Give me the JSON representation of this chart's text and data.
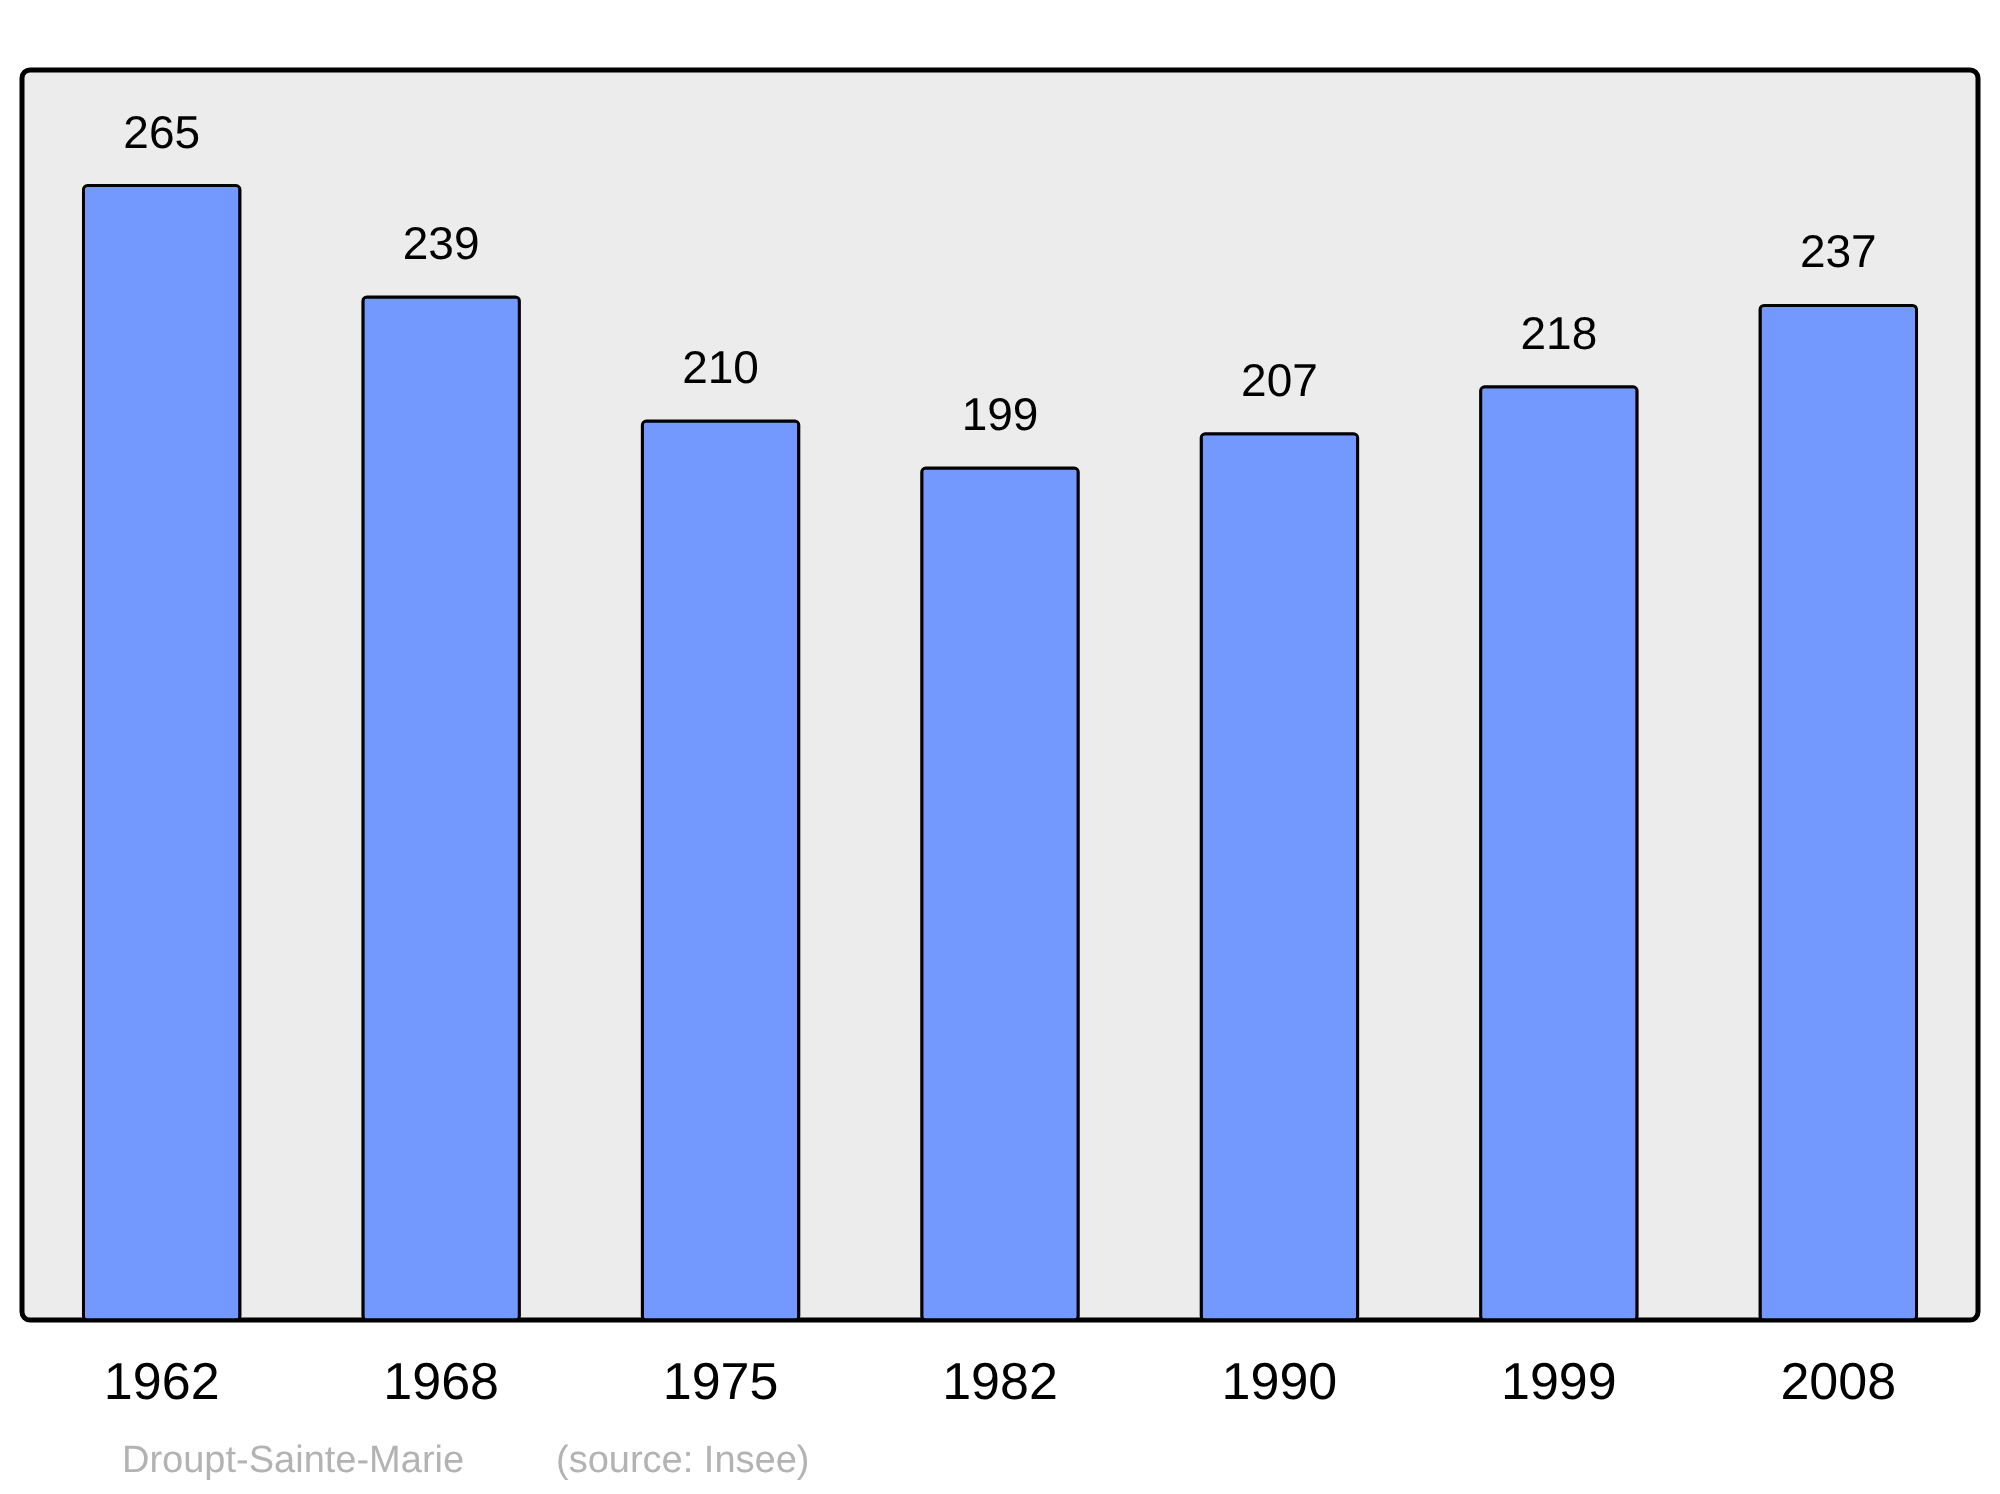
{
  "chart_data": {
    "type": "bar",
    "categories": [
      "1962",
      "1968",
      "1975",
      "1982",
      "1990",
      "1999",
      "2008"
    ],
    "values": [
      265,
      239,
      210,
      199,
      207,
      218,
      237
    ],
    "color": "#7399ff",
    "ylim": [
      0,
      292
    ],
    "data_labels": true,
    "grid": false,
    "annotations": [
      "Droupt-Sainte-Marie",
      "(source: Insee)"
    ]
  }
}
